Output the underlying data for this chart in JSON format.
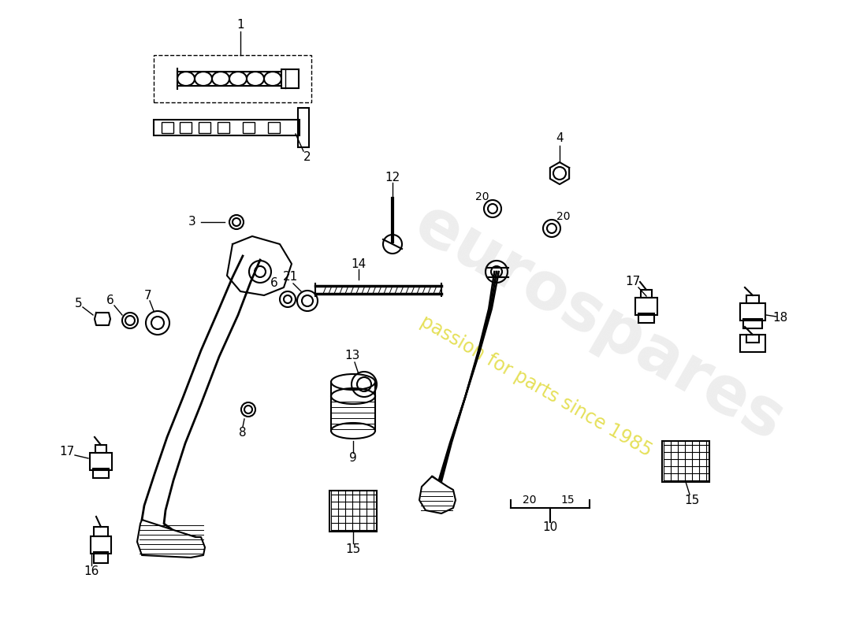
{
  "bg_color": "#ffffff",
  "line_color": "#000000",
  "watermark_text": "eurospares",
  "watermark_subtext": "passion for parts since 1985",
  "lw_main": 1.5,
  "lw_thin": 1.0
}
